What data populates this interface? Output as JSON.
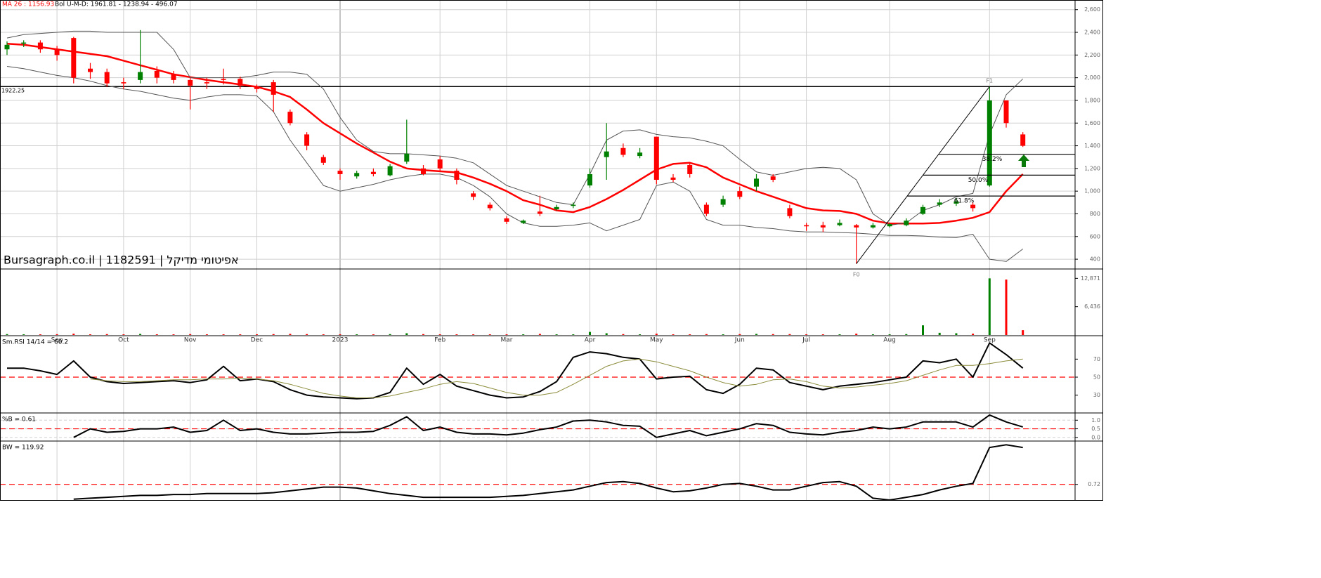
{
  "chart_data": [
    {
      "type": "candlestick",
      "ma_label": "MA 26 : 1156.93",
      "bb_label": "Bol U-M-D: 1961.81 - 1238.94 - 496.07",
      "watermark": "Bursagraph.co.il | 1182591 | אפיטומי מדיקל",
      "categories": [
        null,
        null,
        null,
        "Sep",
        null,
        null,
        null,
        "Oct",
        null,
        null,
        null,
        "Nov",
        null,
        null,
        null,
        "Dec",
        null,
        null,
        null,
        null,
        "2023",
        null,
        null,
        null,
        null,
        null,
        "Feb",
        null,
        null,
        null,
        "Mar",
        null,
        null,
        null,
        null,
        "Apr",
        null,
        null,
        null,
        "May",
        null,
        null,
        null,
        null,
        "Jun",
        null,
        null,
        null,
        "Jul",
        null,
        null,
        null,
        null,
        "Aug",
        null,
        null,
        null,
        null,
        null,
        "Sep",
        null,
        null
      ],
      "open": [
        2250,
        2300,
        2310,
        2250,
        2350,
        2080,
        2050,
        1960,
        1980,
        2060,
        2030,
        1980,
        1960,
        1990,
        1990,
        1920,
        1960,
        1700,
        1500,
        1300,
        1180,
        1130,
        1170,
        1140,
        1260,
        1200,
        1280,
        1180,
        980,
        880,
        760,
        720,
        820,
        840,
        870,
        1050,
        1300,
        1380,
        1310,
        1480,
        1120,
        1230,
        880,
        880,
        1000,
        1040,
        1130,
        850,
        700,
        700,
        700,
        700,
        680,
        690,
        700,
        800,
        880,
        890,
        880,
        1050,
        1800,
        1500
      ],
      "high": [
        2320,
        2330,
        2330,
        2280,
        2360,
        2130,
        2080,
        2000,
        2420,
        2100,
        2060,
        2000,
        2000,
        2080,
        2010,
        1940,
        1980,
        1720,
        1520,
        1320,
        1200,
        1180,
        1200,
        1240,
        1630,
        1230,
        1310,
        1200,
        1000,
        900,
        780,
        750,
        960,
        880,
        900,
        1200,
        1600,
        1420,
        1380,
        1480,
        1150,
        1250,
        900,
        960,
        1040,
        1150,
        1150,
        880,
        720,
        730,
        750,
        710,
        720,
        720,
        760,
        880,
        930,
        940,
        900,
        1922.25,
        1800,
        1520
      ],
      "low": [
        2200,
        2270,
        2220,
        2150,
        1950,
        1990,
        1920,
        1900,
        1950,
        1950,
        1950,
        1720,
        1900,
        1940,
        1900,
        1870,
        1700,
        1580,
        1360,
        1230,
        1100,
        1110,
        1130,
        1130,
        1240,
        1140,
        1170,
        1060,
        920,
        830,
        710,
        710,
        780,
        830,
        850,
        1030,
        1100,
        1300,
        1290,
        1060,
        1080,
        1120,
        780,
        860,
        930,
        1000,
        1080,
        760,
        650,
        640,
        690,
        360,
        670,
        680,
        690,
        790,
        860,
        870,
        820,
        1040,
        1560,
        1390
      ],
      "close": [
        2290,
        2310,
        2250,
        2200,
        2000,
        2050,
        1950,
        1950,
        2050,
        2000,
        1980,
        1930,
        1950,
        1980,
        1930,
        1900,
        1850,
        1600,
        1400,
        1250,
        1150,
        1160,
        1150,
        1220,
        1330,
        1150,
        1200,
        1100,
        950,
        850,
        730,
        740,
        800,
        860,
        880,
        1150,
        1350,
        1320,
        1340,
        1100,
        1100,
        1150,
        800,
        930,
        950,
        1110,
        1100,
        780,
        690,
        680,
        720,
        680,
        700,
        710,
        740,
        860,
        900,
        910,
        850,
        1800,
        1600,
        1400
      ],
      "up_color": "#008000",
      "down_color": "#ff0000",
      "overlays": [
        {
          "color": "#ff0000",
          "width": 2.5,
          "values": [
            2300,
            2290,
            2270,
            2250,
            2230,
            2210,
            2190,
            2150,
            2110,
            2070,
            2030,
            2005,
            1980,
            1960,
            1940,
            1920,
            1880,
            1830,
            1720,
            1600,
            1510,
            1420,
            1340,
            1260,
            1200,
            1185,
            1175,
            1165,
            1120,
            1065,
            1000,
            920,
            880,
            830,
            815,
            860,
            930,
            1010,
            1100,
            1190,
            1240,
            1250,
            1210,
            1120,
            1060,
            1000,
            950,
            900,
            850,
            830,
            825,
            800,
            740,
            715,
            715,
            715,
            720,
            740,
            765,
            815,
            1000,
            1150
          ]
        },
        {
          "color": "#555555",
          "width": 1,
          "values": [
            2350,
            2380,
            2390,
            2400,
            2410,
            2410,
            2400,
            2400,
            2400,
            2400,
            2250,
            2000,
            2000,
            2000,
            2000,
            2020,
            2050,
            2050,
            2030,
            1900,
            1650,
            1450,
            1350,
            1330,
            1330,
            1320,
            1310,
            1290,
            1250,
            1150,
            1050,
            1000,
            950,
            900,
            880,
            1150,
            1450,
            1530,
            1540,
            1500,
            1480,
            1470,
            1440,
            1400,
            1280,
            1170,
            1140,
            1170,
            1200,
            1210,
            1200,
            1100,
            800,
            700,
            720,
            830,
            880,
            950,
            980,
            1500,
            1850,
            1990
          ]
        },
        {
          "color": "#555555",
          "width": 1,
          "values": [
            2100,
            2080,
            2050,
            2020,
            2000,
            1970,
            1930,
            1900,
            1880,
            1850,
            1820,
            1800,
            1830,
            1850,
            1850,
            1840,
            1700,
            1450,
            1250,
            1050,
            1000,
            1030,
            1060,
            1100,
            1130,
            1150,
            1150,
            1120,
            1050,
            950,
            800,
            720,
            690,
            690,
            700,
            720,
            650,
            700,
            750,
            1050,
            1080,
            1000,
            750,
            700,
            700,
            680,
            670,
            650,
            640,
            640,
            635,
            630,
            620,
            610,
            610,
            605,
            595,
            590,
            620,
            400,
            380,
            490
          ]
        }
      ],
      "level": 1922.25,
      "fibonacci": {
        "start_label": "F0",
        "end_label": "F1",
        "levels": [
          {
            "value": 1325,
            "label": "38.2%"
          },
          {
            "value": 1141,
            "label": "50.0%"
          },
          {
            "value": 957,
            "label": "61.8%"
          }
        ]
      },
      "ylim": [
        320,
        2685
      ],
      "yticks": [
        400,
        600,
        800,
        {
          "value": 1000,
          "label": "1,000"
        },
        {
          "value": 1200,
          "label": "1,200"
        },
        {
          "value": 1400,
          "label": "1,400"
        },
        {
          "value": 1600,
          "label": "1,600"
        },
        {
          "value": 1800,
          "label": "1,800"
        },
        {
          "value": 2000,
          "label": "2,000"
        },
        {
          "value": 2200,
          "label": "2,200"
        },
        {
          "value": 2400,
          "label": "2,400"
        },
        {
          "value": 2600,
          "label": "2,600"
        }
      ],
      "grid": true
    },
    {
      "type": "bar",
      "values": [
        200,
        150,
        150,
        180,
        300,
        150,
        200,
        150,
        250,
        150,
        150,
        200,
        150,
        150,
        150,
        150,
        200,
        250,
        200,
        150,
        150,
        150,
        150,
        200,
        400,
        200,
        150,
        150,
        150,
        150,
        150,
        150,
        250,
        150,
        150,
        700,
        400,
        200,
        150,
        300,
        150,
        150,
        200,
        150,
        200,
        250,
        200,
        200,
        150,
        150,
        150,
        300,
        150,
        150,
        200,
        2200,
        500,
        400,
        300,
        12871,
        12600,
        1100
      ],
      "ylim": [
        0,
        15000
      ],
      "yticks": [
        {
          "value": 6436,
          "label": "6,436"
        },
        {
          "value": 12871,
          "label": "12,871"
        }
      ],
      "grid": false
    },
    {
      "type": "line",
      "title": "Sm.RSI 14/14 = 60.2",
      "series": [
        {
          "color": "#000000",
          "width": 2,
          "values": [
            60,
            60,
            57,
            53,
            68,
            50,
            45,
            43,
            44,
            45,
            46,
            44,
            47,
            62,
            46,
            48,
            45,
            36,
            30,
            28,
            27,
            26,
            27,
            33,
            60,
            42,
            53,
            40,
            35,
            30,
            27,
            28,
            34,
            45,
            72,
            78,
            76,
            72,
            70,
            48,
            50,
            51,
            36,
            32,
            42,
            60,
            58,
            44,
            40,
            36,
            40,
            42,
            44,
            47,
            50,
            68,
            66,
            70,
            50,
            88,
            75,
            60
          ]
        },
        {
          "color": "#8b8b3a",
          "width": 1,
          "values": [
            null,
            null,
            null,
            null,
            null,
            48,
            46,
            45,
            45,
            46,
            47,
            47,
            48,
            48,
            49,
            48,
            46,
            42,
            37,
            32,
            29,
            27,
            27,
            29,
            33,
            37,
            42,
            45,
            43,
            38,
            33,
            30,
            30,
            33,
            42,
            52,
            62,
            68,
            70,
            67,
            62,
            57,
            50,
            44,
            40,
            42,
            47,
            48,
            45,
            40,
            38,
            39,
            41,
            43,
            46,
            52,
            58,
            63,
            63,
            65,
            68,
            70
          ]
        }
      ],
      "reference_line": 50,
      "ylim": [
        11,
        96
      ],
      "yticks": [
        30,
        50,
        70
      ],
      "grid": false
    },
    {
      "type": "line",
      "title": "%B = 0.61",
      "series": [
        {
          "color": "#000000",
          "width": 2,
          "values": [
            null,
            null,
            null,
            null,
            0.0,
            0.5,
            0.3,
            0.35,
            0.5,
            0.5,
            0.6,
            0.3,
            0.4,
            1.0,
            0.4,
            0.5,
            0.3,
            0.2,
            0.2,
            0.25,
            0.3,
            0.3,
            0.35,
            0.7,
            1.2,
            0.4,
            0.6,
            0.3,
            0.2,
            0.2,
            0.15,
            0.25,
            0.45,
            0.6,
            0.95,
            1.0,
            0.9,
            0.7,
            0.65,
            0.0,
            0.2,
            0.4,
            0.1,
            0.3,
            0.5,
            0.8,
            0.7,
            0.3,
            0.2,
            0.15,
            0.3,
            0.4,
            0.6,
            0.5,
            0.6,
            0.9,
            0.9,
            0.9,
            0.6,
            1.3,
            0.9,
            0.61
          ]
        }
      ],
      "reference_line": 0.5,
      "ylim": [
        -0.17,
        1.42
      ],
      "yticks": [
        {
          "value": 0,
          "label": "0.0"
        },
        {
          "value": 0.5,
          "label": "0.5"
        },
        {
          "value": 1,
          "label": "1.0"
        }
      ],
      "grid": true,
      "grid_style": "dashed"
    },
    {
      "type": "line",
      "title": "BW = 119.92",
      "series": [
        {
          "color": "#000000",
          "width": 2,
          "values": [
            null,
            null,
            null,
            null,
            0.56,
            0.57,
            0.58,
            0.59,
            0.6,
            0.6,
            0.61,
            0.61,
            0.62,
            0.62,
            0.62,
            0.62,
            0.63,
            0.65,
            0.67,
            0.69,
            0.69,
            0.68,
            0.65,
            0.62,
            0.6,
            0.58,
            0.58,
            0.58,
            0.58,
            0.58,
            0.59,
            0.6,
            0.62,
            0.64,
            0.66,
            0.7,
            0.74,
            0.75,
            0.73,
            0.68,
            0.64,
            0.65,
            0.68,
            0.72,
            0.73,
            0.7,
            0.66,
            0.66,
            0.7,
            0.74,
            0.75,
            0.7,
            0.57,
            0.55,
            0.58,
            0.61,
            0.66,
            0.7,
            0.73,
            1.12,
            1.15,
            1.12
          ]
        }
      ],
      "reference_line": 0.72,
      "ylim": [
        0.55,
        1.19
      ],
      "yticks": [
        0.72
      ],
      "grid": false
    }
  ]
}
